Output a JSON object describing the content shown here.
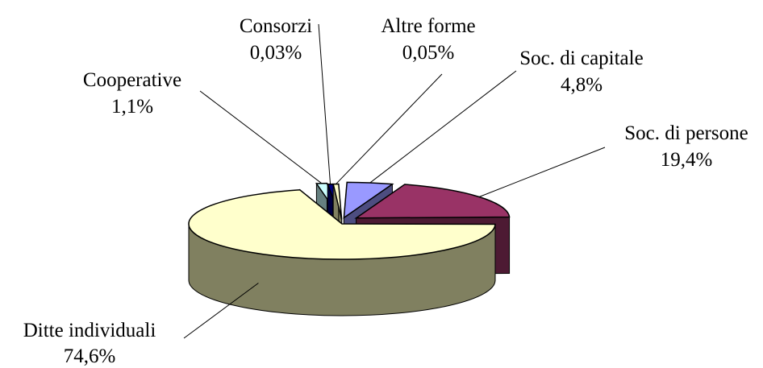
{
  "chart_data": {
    "type": "pie",
    "style": "3d-exploded",
    "title": "",
    "series": [
      {
        "name": "Ditte individuali",
        "value": 74.6,
        "value_label": "74,6%",
        "color": "#ffffcc",
        "side_color": "#808060"
      },
      {
        "name": "Soc. di persone",
        "value": 19.4,
        "value_label": "19,4%",
        "color": "#993366",
        "side_color": "#4d1a33"
      },
      {
        "name": "Soc. di capitale",
        "value": 4.8,
        "value_label": "4,8%",
        "color": "#9999ff",
        "side_color": "#4d4d80"
      },
      {
        "name": "Altre forme",
        "value": 0.05,
        "value_label": "0,05%",
        "color": "#ffffcc",
        "side_color": "#808060"
      },
      {
        "name": "Consorzi",
        "value": 0.03,
        "value_label": "0,03%",
        "color": "#000080",
        "side_color": "#000040"
      },
      {
        "name": "Cooperative",
        "value": 1.1,
        "value_label": "1,1%",
        "color": "#ccffff",
        "side_color": "#668080"
      }
    ],
    "legend": "none",
    "labels": "outside-with-leader-lines"
  }
}
